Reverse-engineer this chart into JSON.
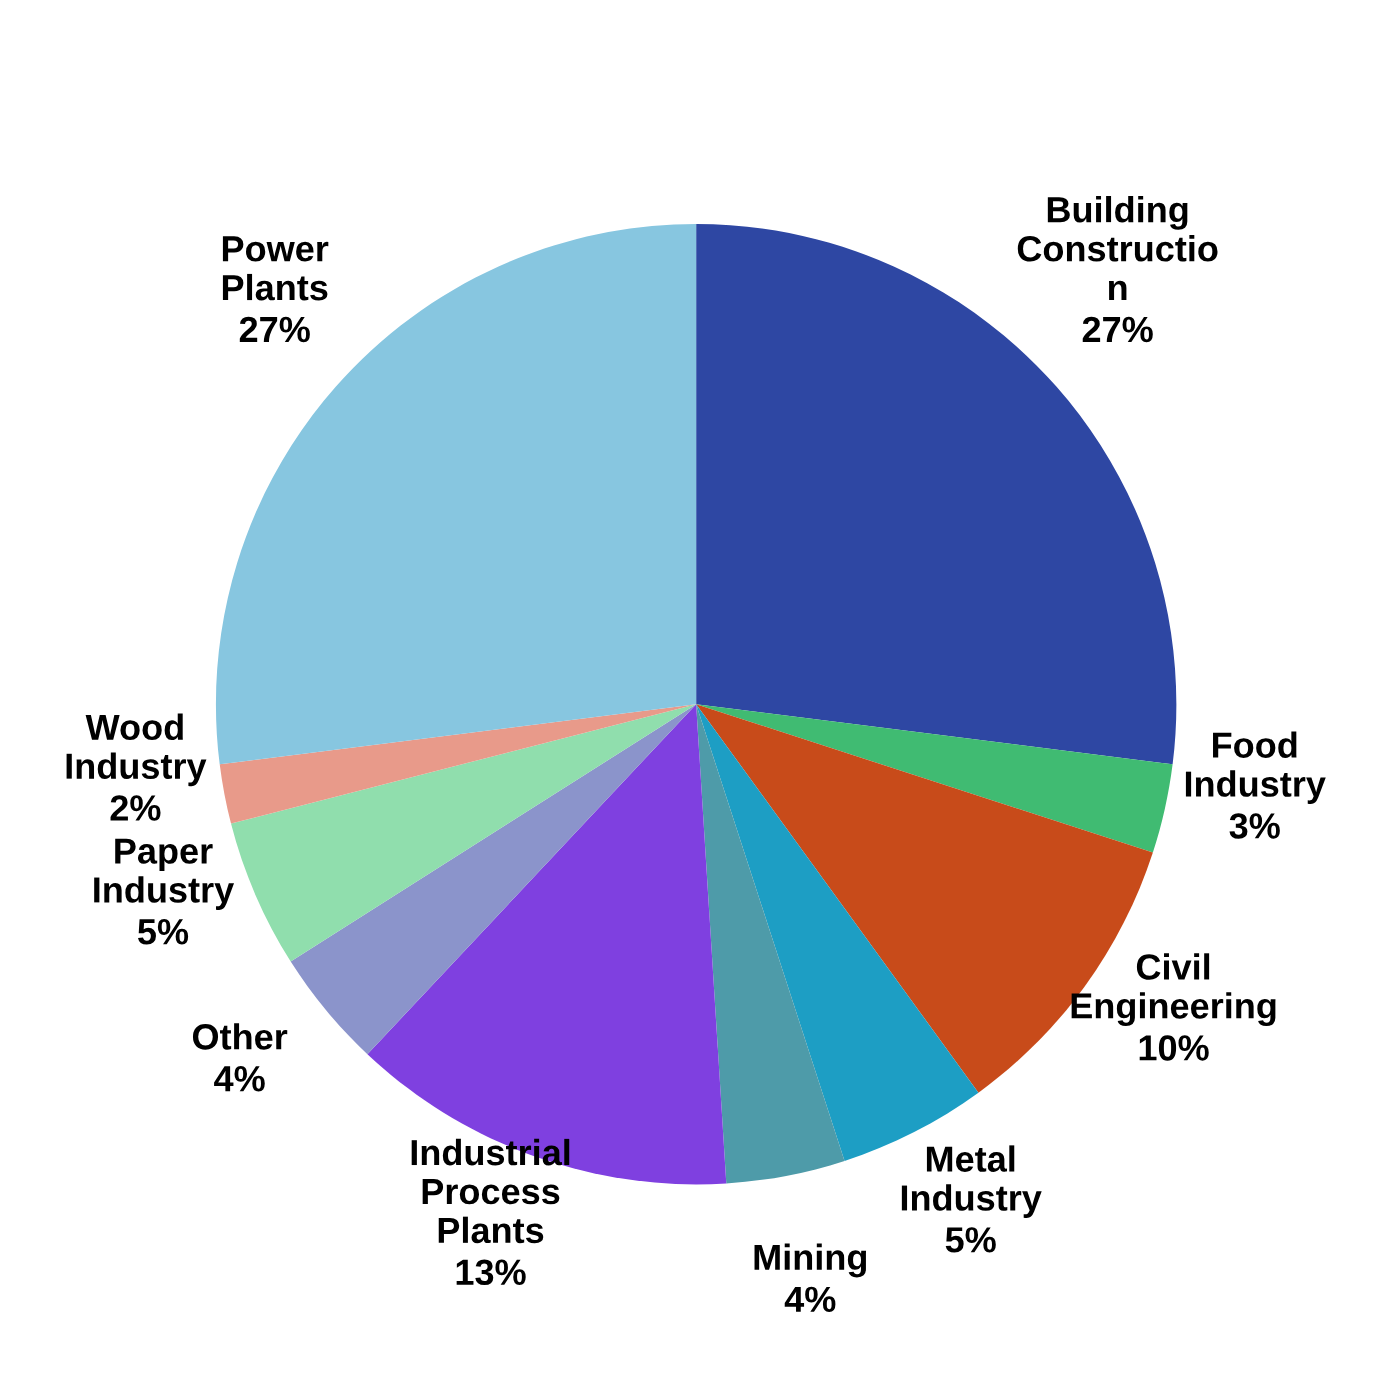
{
  "chart_data": {
    "type": "pie",
    "categories": [
      "Building\nConstructio\nn",
      "Food\nIndustry",
      "Civil\nEngineering",
      "Metal\nIndustry",
      "Mining",
      "Industrial\nProcess\nPlants",
      "Other",
      "Paper\nIndustry",
      "Wood\nIndustry",
      "Power\nPlants"
    ],
    "values": [
      27,
      3,
      10,
      5,
      4,
      13,
      4,
      5,
      2,
      27
    ],
    "colors": [
      "#2e47a3",
      "#40bb72",
      "#c84b1a",
      "#1d9ec4",
      "#4e9ba9",
      "#7f40e0",
      "#8b94cb",
      "#90dead",
      "#e89a8a",
      "#87c6e0"
    ],
    "value_labels": [
      "27%",
      "3%",
      "10%",
      "5%",
      "4%",
      "13%",
      "4%",
      "5%",
      "2%",
      "27%"
    ]
  }
}
